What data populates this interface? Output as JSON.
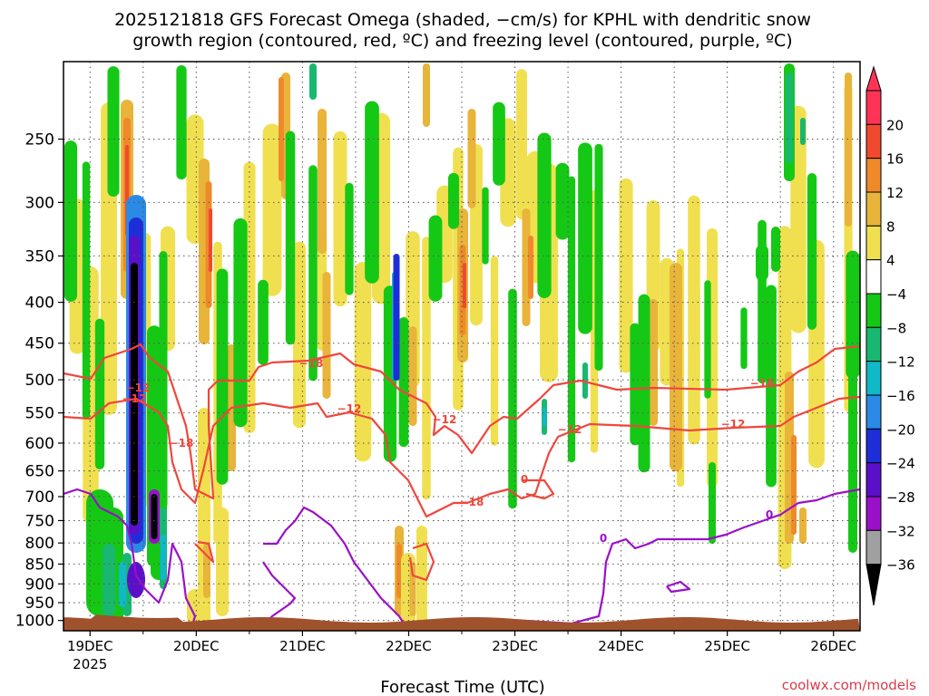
{
  "chart_data": {
    "type": "heatmap",
    "title_line1": "2025121818 GFS Forecast Omega (shaded, −cm/s) for KPHL with dendritic snow",
    "title_line2": "growth region (contoured, red, ºC) and freezing level (contoured, purple, ºC)",
    "xlabel": "Forecast Time (UTC)",
    "credit": "coolwx.com/models",
    "x_ticks": [
      {
        "label": "19DEC",
        "day": 0,
        "sub": "2025"
      },
      {
        "label": "20DEC",
        "day": 1
      },
      {
        "label": "21DEC",
        "day": 2
      },
      {
        "label": "22DEC",
        "day": 3
      },
      {
        "label": "23DEC",
        "day": 4
      },
      {
        "label": "24DEC",
        "day": 5
      },
      {
        "label": "25DEC",
        "day": 6
      },
      {
        "label": "26DEC",
        "day": 7
      }
    ],
    "x_range_days": [
      -0.25,
      7.25
    ],
    "y_axis": "pressure (hPa), log scale, inverted",
    "y_range_hpa": [
      200,
      1030
    ],
    "y_ticks": [
      250,
      300,
      350,
      400,
      450,
      500,
      550,
      600,
      650,
      700,
      750,
      800,
      850,
      900,
      950,
      1000
    ],
    "colorbar": {
      "labels": [
        "20",
        "16",
        "12",
        "8",
        "4",
        "−4",
        "−8",
        "−12",
        "−16",
        "−20",
        "−24",
        "−28",
        "−32",
        "−36"
      ],
      "colors": [
        "#ff3356",
        "#f04a2e",
        "#ef8a2a",
        "#e8b43a",
        "#f0e050",
        "#ffffff",
        "#15c815",
        "#18b870",
        "#10b8c8",
        "#2a8ae6",
        "#1d2ed8",
        "#5a10c8",
        "#9a10c8",
        "#a0a0a0",
        "#000000"
      ]
    },
    "contours": {
      "dendritic_labels": [
        "−12",
        "−18",
        "−12",
        "−18",
        "−12",
        "−18",
        "−12",
        "−18",
        "−12",
        "−12"
      ],
      "freezing_labels": [
        "0",
        "0",
        "0"
      ]
    },
    "colors": {
      "red_contour": "#f0463c",
      "purple_contour": "#9a10c8",
      "ground": "#a0522d",
      "credit": "#d83c4b",
      "dotted_grid": "#555555"
    }
  }
}
